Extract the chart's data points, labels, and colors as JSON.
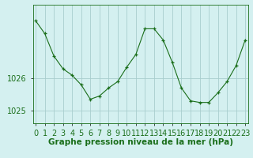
{
  "x": [
    0,
    1,
    2,
    3,
    4,
    5,
    6,
    7,
    8,
    9,
    10,
    11,
    12,
    13,
    14,
    15,
    16,
    17,
    18,
    19,
    20,
    21,
    22,
    23
  ],
  "y": [
    1027.8,
    1027.4,
    1026.7,
    1026.3,
    1026.1,
    1025.8,
    1025.35,
    1025.45,
    1025.7,
    1025.9,
    1026.35,
    1026.75,
    1027.55,
    1027.55,
    1027.2,
    1026.5,
    1025.7,
    1025.3,
    1025.25,
    1025.25,
    1025.55,
    1025.9,
    1026.4,
    1027.2
  ],
  "line_color": "#1a6e1a",
  "marker_color": "#1a6e1a",
  "bg_color": "#d4f0f0",
  "grid_color": "#a8cece",
  "text_color": "#1a6e1a",
  "xlabel": "Graphe pression niveau de la mer (hPa)",
  "ylim_min": 1024.6,
  "ylim_max": 1028.3,
  "yticks": [
    1025,
    1026
  ],
  "tick_fontsize": 7,
  "label_fontsize": 7.5
}
